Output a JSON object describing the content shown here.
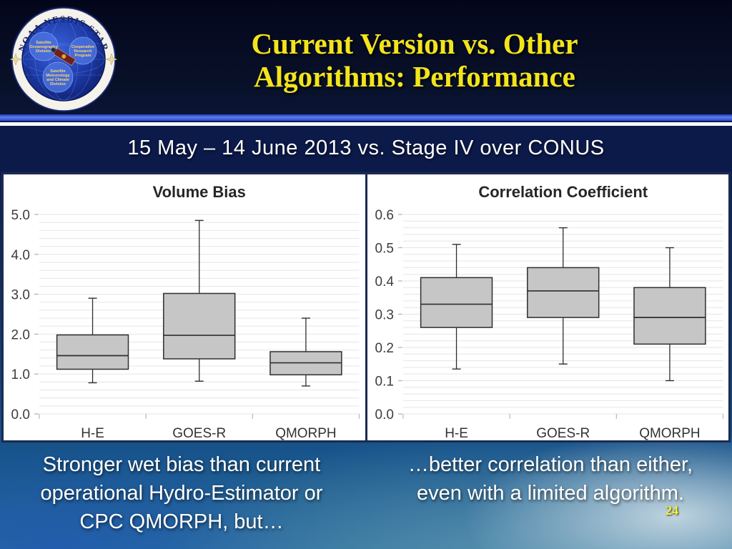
{
  "header": {
    "title_lines": [
      "Current Version vs. Other",
      "Algorithms: Performance"
    ],
    "logo": {
      "ring_top": "NOAA NESDIS STAR",
      "ring_bottom": "Center for Satellite Applications and Research",
      "circles": [
        {
          "lines": [
            "Satellite",
            "Oceanography",
            "Division"
          ]
        },
        {
          "lines": [
            "Cooperative",
            "Research",
            "Program"
          ]
        },
        {
          "lines": [
            "Satellite",
            "Meteorology",
            "and Climate",
            "Division"
          ]
        }
      ]
    }
  },
  "subtitle": "15 May – 14 June 2013 vs. Stage IV over CONUS",
  "footer": {
    "left_note": {
      "lines": [
        "Stronger wet bias than current",
        "operational Hydro-Estimator or",
        "CPC QMORPH, but…"
      ]
    },
    "right_note": {
      "lines": [
        "…better correlation than either,",
        "even with a limited algorithm."
      ]
    },
    "page_number": "24"
  },
  "colors": {
    "title_yellow": "#f2e41c",
    "accent_bar_blue": "#5d7cf2",
    "divider_white": "#ffffff",
    "subtitle_band_navy": "#0d1a4a",
    "panel_border_navy": "#1c2a52",
    "box_fill_gray": "#c6c6c6",
    "box_stroke_gray": "#2f2f2f",
    "gridline_gray": "#e5e5e5",
    "page_number_yellow": "#fdf328"
  },
  "chart_data": [
    {
      "type": "boxplot",
      "title": "Volume Bias",
      "categories": [
        "H-E",
        "GOES-R",
        "QMORPH"
      ],
      "ylim": [
        0,
        5
      ],
      "ytick_step": 1.0,
      "ytick_decimals": 1,
      "ytick_labels": [
        "0.0",
        "1.0",
        "2.0",
        "3.0",
        "4.0",
        "5.0"
      ],
      "minor_grid_step": 0.2,
      "grid": true,
      "legend": "none",
      "series": [
        {
          "category": "H-E",
          "whisker_low": 0.78,
          "q1": 1.12,
          "median": 1.46,
          "q3": 1.98,
          "whisker_high": 2.9
        },
        {
          "category": "GOES-R",
          "whisker_low": 0.82,
          "q1": 1.38,
          "median": 1.97,
          "q3": 3.02,
          "whisker_high": 4.85
        },
        {
          "category": "QMORPH",
          "whisker_low": 0.7,
          "q1": 0.98,
          "median": 1.28,
          "q3": 1.56,
          "whisker_high": 2.4
        }
      ]
    },
    {
      "type": "boxplot",
      "title": "Correlation Coefficient",
      "categories": [
        "H-E",
        "GOES-R",
        "QMORPH"
      ],
      "ylim": [
        0,
        0.6
      ],
      "ytick_step": 0.1,
      "ytick_decimals": 1,
      "ytick_labels": [
        "0.0",
        "0.1",
        "0.2",
        "0.3",
        "0.4",
        "0.5",
        "0.6"
      ],
      "minor_grid_step": 0.02,
      "grid": true,
      "legend": "none",
      "series": [
        {
          "category": "H-E",
          "whisker_low": 0.135,
          "q1": 0.26,
          "median": 0.33,
          "q3": 0.41,
          "whisker_high": 0.51
        },
        {
          "category": "GOES-R",
          "whisker_low": 0.15,
          "q1": 0.29,
          "median": 0.37,
          "q3": 0.44,
          "whisker_high": 0.56
        },
        {
          "category": "QMORPH",
          "whisker_low": 0.1,
          "q1": 0.21,
          "median": 0.29,
          "q3": 0.38,
          "whisker_high": 0.5
        }
      ]
    }
  ]
}
